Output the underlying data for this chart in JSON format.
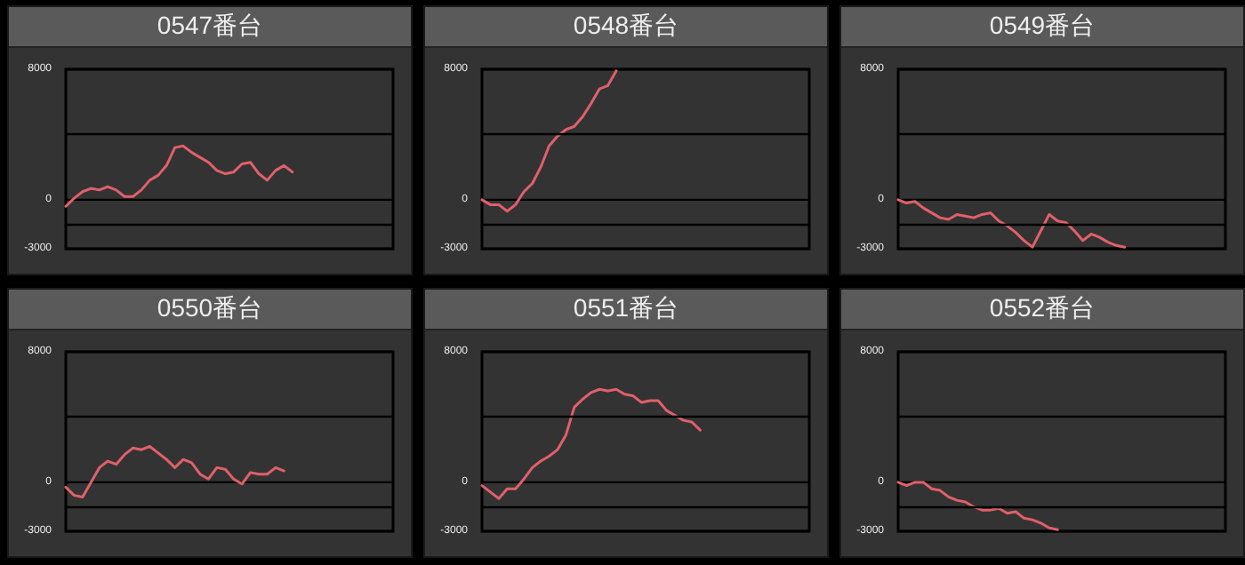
{
  "chart_data": [
    {
      "type": "line",
      "title": "0547番台",
      "categories": [
        null,
        null,
        null,
        null,
        null,
        null,
        null,
        null,
        null,
        null,
        null,
        null,
        null,
        null,
        null,
        null,
        null,
        null,
        null,
        null,
        null,
        null,
        null,
        null,
        null,
        null,
        null,
        null,
        null,
        null,
        null,
        null,
        null,
        null,
        null,
        null,
        null,
        null,
        null,
        null
      ],
      "series": [
        {
          "color": "#e0606a",
          "values": [
            -400,
            100,
            500,
            700,
            600,
            800,
            600,
            200,
            200,
            600,
            1200,
            1500,
            2100,
            3200,
            3300,
            2900,
            2600,
            2300,
            1800,
            1600,
            1700,
            2200,
            2300,
            1600,
            1200,
            1800,
            2100,
            1700,
            null,
            null,
            null,
            null,
            null,
            null,
            null,
            null,
            null,
            null,
            null,
            null
          ]
        }
      ],
      "ylim": [
        -3000,
        8000
      ],
      "yticks": [
        -3000,
        0,
        8000
      ],
      "ref_lines": [
        {
          "axis": "y",
          "value": -1500
        },
        {
          "axis": "y",
          "value": 4000
        }
      ],
      "grid": "y",
      "tick_labels": "y"
    },
    {
      "type": "line",
      "title": "0548番台",
      "categories": [
        null,
        null,
        null,
        null,
        null,
        null,
        null,
        null,
        null,
        null,
        null,
        null,
        null,
        null,
        null,
        null,
        null,
        null,
        null,
        null,
        null,
        null,
        null,
        null,
        null,
        null,
        null,
        null,
        null,
        null,
        null,
        null,
        null,
        null,
        null,
        null,
        null,
        null,
        null,
        null
      ],
      "series": [
        {
          "color": "#e0606a",
          "values": [
            0,
            -300,
            -300,
            -700,
            -300,
            500,
            1000,
            2000,
            3300,
            3900,
            4300,
            4500,
            5100,
            5900,
            6800,
            7000,
            7900,
            null,
            null,
            null,
            null,
            null,
            null,
            null,
            null,
            null,
            null,
            null,
            null,
            null,
            null,
            null,
            null,
            null,
            null,
            null,
            null,
            null,
            null,
            null
          ]
        }
      ],
      "ylim": [
        -3000,
        8000
      ],
      "yticks": [
        -3000,
        0,
        8000
      ],
      "ref_lines": [
        {
          "axis": "y",
          "value": -1500
        },
        {
          "axis": "y",
          "value": 4000
        }
      ],
      "grid": "y",
      "tick_labels": "y"
    },
    {
      "type": "line",
      "title": "0549番台",
      "categories": [
        null,
        null,
        null,
        null,
        null,
        null,
        null,
        null,
        null,
        null,
        null,
        null,
        null,
        null,
        null,
        null,
        null,
        null,
        null,
        null,
        null,
        null,
        null,
        null,
        null,
        null,
        null,
        null,
        null,
        null,
        null,
        null,
        null,
        null,
        null,
        null,
        null,
        null,
        null,
        null
      ],
      "series": [
        {
          "color": "#e0606a",
          "values": [
            0,
            -200,
            -100,
            -500,
            -800,
            -1100,
            -1200,
            -900,
            -1000,
            -1100,
            -900,
            -800,
            -1300,
            -1600,
            -2000,
            -2500,
            -2900,
            -1900,
            -900,
            -1300,
            -1400,
            -1900,
            -2500,
            -2100,
            -2300,
            -2600,
            -2800,
            -2900,
            null,
            null,
            null,
            null,
            null,
            null,
            null,
            null,
            null,
            null,
            null,
            null
          ]
        }
      ],
      "ylim": [
        -3000,
        8000
      ],
      "yticks": [
        -3000,
        0,
        8000
      ],
      "ref_lines": [
        {
          "axis": "y",
          "value": -1500
        },
        {
          "axis": "y",
          "value": 4000
        }
      ],
      "grid": "y",
      "tick_labels": "y"
    },
    {
      "type": "line",
      "title": "0550番台",
      "categories": [
        null,
        null,
        null,
        null,
        null,
        null,
        null,
        null,
        null,
        null,
        null,
        null,
        null,
        null,
        null,
        null,
        null,
        null,
        null,
        null,
        null,
        null,
        null,
        null,
        null,
        null,
        null,
        null,
        null,
        null,
        null,
        null,
        null,
        null,
        null,
        null,
        null,
        null,
        null,
        null
      ],
      "series": [
        {
          "color": "#e0606a",
          "values": [
            -300,
            -800,
            -900,
            0,
            900,
            1300,
            1100,
            1700,
            2100,
            2000,
            2200,
            1800,
            1400,
            900,
            1400,
            1200,
            500,
            200,
            900,
            800,
            200,
            -100,
            600,
            500,
            500,
            900,
            700,
            null,
            null,
            null,
            null,
            null,
            null,
            null,
            null,
            null,
            null,
            null,
            null,
            null
          ]
        }
      ],
      "ylim": [
        -3000,
        8000
      ],
      "yticks": [
        -3000,
        0,
        8000
      ],
      "ref_lines": [
        {
          "axis": "y",
          "value": -1500
        },
        {
          "axis": "y",
          "value": 4000
        }
      ],
      "grid": "y",
      "tick_labels": "y"
    },
    {
      "type": "line",
      "title": "0551番台",
      "categories": [
        null,
        null,
        null,
        null,
        null,
        null,
        null,
        null,
        null,
        null,
        null,
        null,
        null,
        null,
        null,
        null,
        null,
        null,
        null,
        null,
        null,
        null,
        null,
        null,
        null,
        null,
        null,
        null,
        null,
        null,
        null,
        null,
        null,
        null,
        null,
        null,
        null,
        null,
        null,
        null
      ],
      "series": [
        {
          "color": "#e0606a",
          "values": [
            -200,
            -600,
            -1000,
            -400,
            -400,
            200,
            900,
            1300,
            1600,
            2000,
            2900,
            4600,
            5100,
            5500,
            5700,
            5600,
            5700,
            5400,
            5300,
            4900,
            5000,
            5000,
            4400,
            4100,
            3800,
            3700,
            3200,
            null,
            null,
            null,
            null,
            null,
            null,
            null,
            null,
            null,
            null,
            null,
            null,
            null
          ]
        }
      ],
      "ylim": [
        -3000,
        8000
      ],
      "yticks": [
        -3000,
        0,
        8000
      ],
      "ref_lines": [
        {
          "axis": "y",
          "value": -1500
        },
        {
          "axis": "y",
          "value": 4000
        }
      ],
      "grid": "y",
      "tick_labels": "y"
    },
    {
      "type": "line",
      "title": "0552番台",
      "categories": [
        null,
        null,
        null,
        null,
        null,
        null,
        null,
        null,
        null,
        null,
        null,
        null,
        null,
        null,
        null,
        null,
        null,
        null,
        null,
        null,
        null,
        null,
        null,
        null,
        null,
        null,
        null,
        null,
        null,
        null,
        null,
        null,
        null,
        null,
        null,
        null,
        null,
        null,
        null,
        null
      ],
      "series": [
        {
          "color": "#e0606a",
          "values": [
            0,
            -200,
            0,
            0,
            -400,
            -500,
            -900,
            -1100,
            -1200,
            -1500,
            -1700,
            -1700,
            -1600,
            -1900,
            -1800,
            -2200,
            -2300,
            -2500,
            -2800,
            -2900,
            null,
            null,
            null,
            null,
            null,
            null,
            null,
            null,
            null,
            null,
            null,
            null,
            null,
            null,
            null,
            null,
            null,
            null,
            null,
            null
          ]
        }
      ],
      "ylim": [
        -3000,
        8000
      ],
      "yticks": [
        -3000,
        0,
        8000
      ],
      "ref_lines": [
        {
          "axis": "y",
          "value": -1500
        },
        {
          "axis": "y",
          "value": 4000
        }
      ],
      "grid": "y",
      "tick_labels": "y"
    }
  ]
}
